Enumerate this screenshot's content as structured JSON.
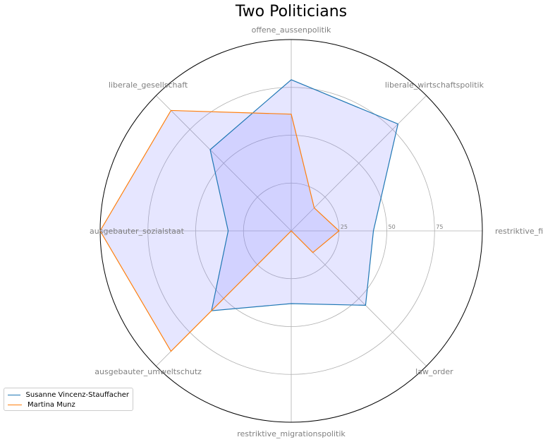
{
  "chart_data": {
    "type": "radar",
    "title": "Two Politicians",
    "axes": [
      "offene_aussenpolitik",
      "liberale_wirtschaftspolitik",
      "restriktive_finanzpolitik",
      "law_order",
      "restriktive_migrationspolitik",
      "ausgebauter_umweltschutz",
      "ausgebauter_sozialstaat",
      "liberale_gesellschaft"
    ],
    "rlim": [
      0,
      100
    ],
    "rticks": [
      25,
      50,
      75
    ],
    "series": [
      {
        "name": "Susanne Vincenz-Stauffacher",
        "color": "#1f77b4",
        "values": [
          79,
          79,
          43,
          55,
          38,
          59,
          33,
          60
        ]
      },
      {
        "name": "Martina Munz",
        "color": "#ff7f0e",
        "values": [
          61,
          17,
          25,
          16,
          0,
          89,
          100,
          89
        ]
      }
    ],
    "fill_color": "#8080ff",
    "grid": true,
    "legend_position": "bottom-left"
  }
}
